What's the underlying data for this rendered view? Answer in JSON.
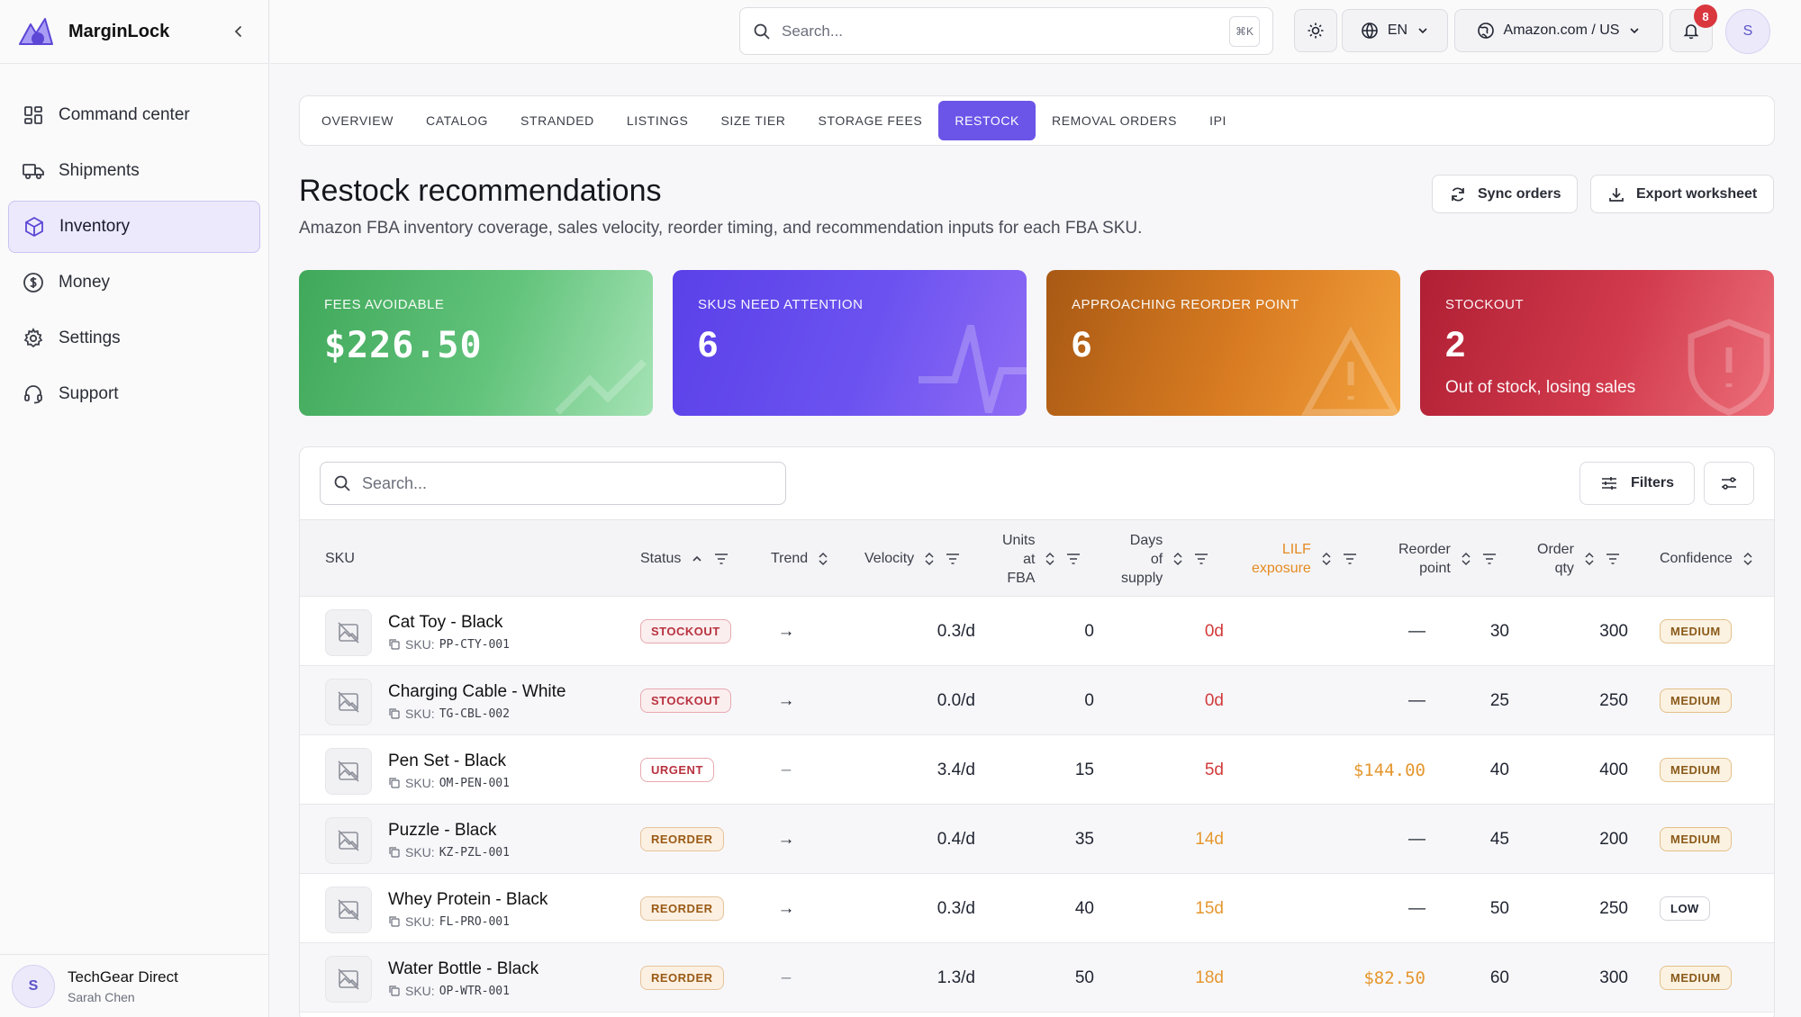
{
  "app": {
    "name": "MarginLock"
  },
  "sidebar": {
    "items": [
      {
        "label": "Command center",
        "icon": "grid-icon",
        "active": false
      },
      {
        "label": "Shipments",
        "icon": "truck-icon",
        "active": false
      },
      {
        "label": "Inventory",
        "icon": "box-icon",
        "active": true
      },
      {
        "label": "Money",
        "icon": "dollar-icon",
        "active": false
      },
      {
        "label": "Settings",
        "icon": "gear-icon",
        "active": false
      },
      {
        "label": "Support",
        "icon": "headset-icon",
        "active": false
      }
    ],
    "account": {
      "avatar": "S",
      "company": "TechGear Direct",
      "user": "Sarah Chen"
    }
  },
  "header": {
    "search_placeholder": "Search...",
    "shortcut": "⌘K",
    "language": "EN",
    "marketplace": "Amazon.com / US",
    "notifications": "8",
    "user_initial": "S"
  },
  "tabs": [
    {
      "label": "OVERVIEW",
      "active": false
    },
    {
      "label": "CATALOG",
      "active": false
    },
    {
      "label": "STRANDED",
      "active": false
    },
    {
      "label": "LISTINGS",
      "active": false
    },
    {
      "label": "SIZE TIER",
      "active": false
    },
    {
      "label": "STORAGE FEES",
      "active": false
    },
    {
      "label": "RESTOCK",
      "active": true
    },
    {
      "label": "REMOVAL ORDERS",
      "active": false
    },
    {
      "label": "IPI",
      "active": false
    }
  ],
  "page": {
    "title": "Restock recommendations",
    "subtitle": "Amazon FBA inventory coverage, sales velocity, reorder timing, and recommendation inputs for each FBA SKU.",
    "sync_label": "Sync orders",
    "export_label": "Export worksheet"
  },
  "cards": [
    {
      "label": "FEES AVOIDABLE",
      "value": "$226.50",
      "note": ""
    },
    {
      "label": "SKUS NEED ATTENTION",
      "value": "6",
      "note": ""
    },
    {
      "label": "APPROACHING REORDER POINT",
      "value": "6",
      "note": ""
    },
    {
      "label": "STOCKOUT",
      "value": "2",
      "note": "Out of stock, losing sales"
    }
  ],
  "table": {
    "search_placeholder": "Search...",
    "filters_label": "Filters",
    "columns": {
      "sku": "SKU",
      "status": "Status",
      "trend": "Trend",
      "velocity": "Velocity",
      "units_l1": "Units",
      "units_l2": "at",
      "units_l3": "FBA",
      "days_l1": "Days",
      "days_l2": "of",
      "days_l3": "supply",
      "lilf_l1": "LILF",
      "lilf_l2": "exposure",
      "reorder_l1": "Reorder",
      "reorder_l2": "point",
      "order_l1": "Order",
      "order_l2": "qty",
      "confidence": "Confidence"
    },
    "sku_prefix": "SKU:",
    "rows": [
      {
        "name": "Cat Toy - Black",
        "sku": "PP-CTY-001",
        "status": "STOCKOUT",
        "trend": "→",
        "velocity": "0.3/d",
        "units": "0",
        "days": "0d",
        "lilf": "—",
        "reorder": "30",
        "order": "300",
        "confidence": "MEDIUM"
      },
      {
        "name": "Charging Cable - White",
        "sku": "TG-CBL-002",
        "status": "STOCKOUT",
        "trend": "→",
        "velocity": "0.0/d",
        "units": "0",
        "days": "0d",
        "lilf": "—",
        "reorder": "25",
        "order": "250",
        "confidence": "MEDIUM"
      },
      {
        "name": "Pen Set - Black",
        "sku": "OM-PEN-001",
        "status": "URGENT",
        "trend": "–",
        "velocity": "3.4/d",
        "units": "15",
        "days": "5d",
        "lilf": "$144.00",
        "reorder": "40",
        "order": "400",
        "confidence": "MEDIUM"
      },
      {
        "name": "Puzzle - Black",
        "sku": "KZ-PZL-001",
        "status": "REORDER",
        "trend": "→",
        "velocity": "0.4/d",
        "units": "35",
        "days": "14d",
        "lilf": "—",
        "reorder": "45",
        "order": "200",
        "confidence": "MEDIUM"
      },
      {
        "name": "Whey Protein - Black",
        "sku": "FL-PRO-001",
        "status": "REORDER",
        "trend": "→",
        "velocity": "0.3/d",
        "units": "40",
        "days": "15d",
        "lilf": "—",
        "reorder": "50",
        "order": "250",
        "confidence": "LOW"
      },
      {
        "name": "Water Bottle - Black",
        "sku": "OP-WTR-001",
        "status": "REORDER",
        "trend": "–",
        "velocity": "1.3/d",
        "units": "50",
        "days": "18d",
        "lilf": "$82.50",
        "reorder": "60",
        "order": "300",
        "confidence": "MEDIUM"
      }
    ]
  },
  "colors": {
    "accent": "#6a55e8",
    "stockout": "#d23a3a",
    "reorder": "#e5972f",
    "card_green": "#4caf6a",
    "card_purple": "#6046ec",
    "card_orange": "#d97c22",
    "card_red": "#c72c40"
  }
}
